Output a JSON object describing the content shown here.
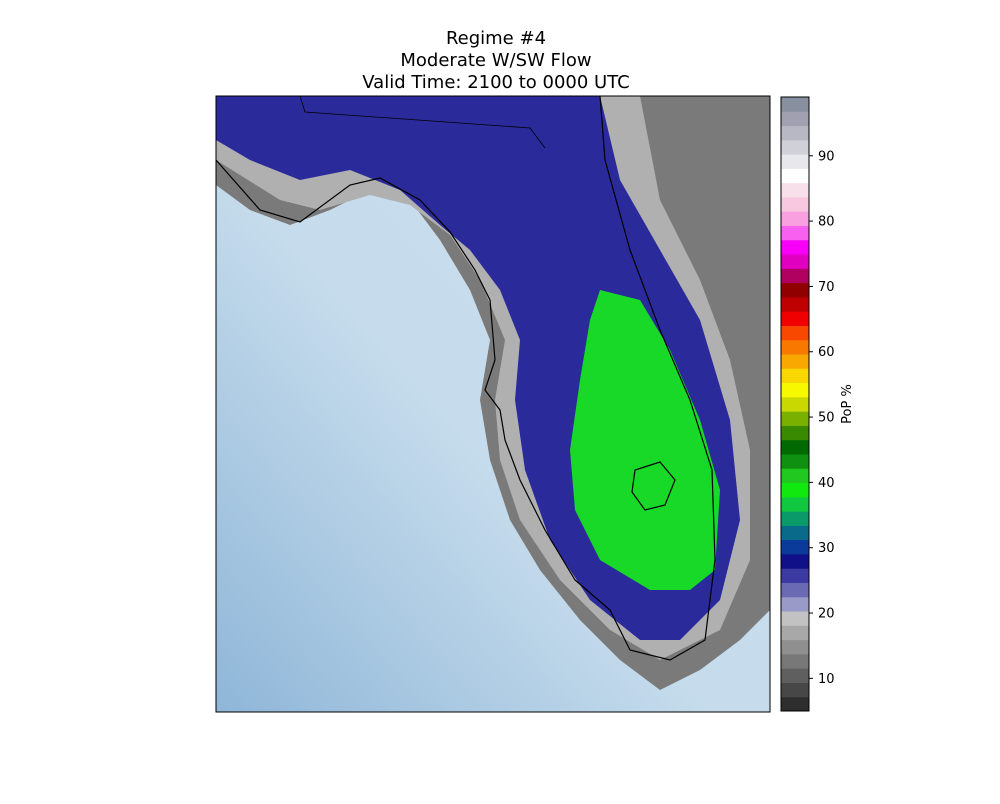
{
  "title": [
    "Regime #4",
    "Moderate W/SW Flow",
    "Valid Time: 2100 to 0000 UTC"
  ],
  "colorbar": {
    "label": "PoP %",
    "lim": [
      5,
      99
    ],
    "ticks": [
      10,
      20,
      30,
      40,
      50,
      60,
      70,
      80,
      90
    ],
    "colors": [
      "#2e2e2e",
      "#474747",
      "#5f5f5f",
      "#787878",
      "#8f8f8f",
      "#a8a8a8",
      "#c2c2c2",
      "#9a9ac8",
      "#6a6ab4",
      "#3a3aa0",
      "#101088",
      "#0a3a9a",
      "#0a6a8a",
      "#0a9a6a",
      "#10c840",
      "#10e810",
      "#20c820",
      "#109010",
      "#006a00",
      "#3a8a00",
      "#7ab000",
      "#c8d800",
      "#f8f800",
      "#f8d800",
      "#f8a800",
      "#f87800",
      "#f84800",
      "#f00000",
      "#c00000",
      "#900000",
      "#b00060",
      "#e000c0",
      "#f800f8",
      "#f860f0",
      "#f8a0e0",
      "#f8c8e0",
      "#f8e0ea",
      "#ffffff",
      "#e8e8ec",
      "#d0d0d8",
      "#b8b8c4",
      "#a0a0b0",
      "#8890a0"
    ]
  }
}
